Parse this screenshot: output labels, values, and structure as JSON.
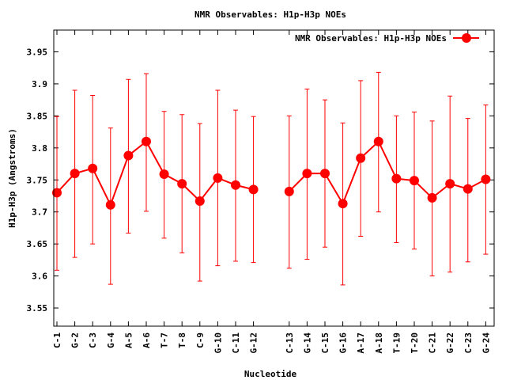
{
  "chart_data": {
    "type": "line",
    "title": "NMR Observables: H1p-H3p NOEs",
    "xlabel": "Nucleotide",
    "ylabel": "H1p-H3p (Angstroms)",
    "legend": {
      "label": "NMR Observables: H1p-H3p NOEs",
      "placement": "top-right"
    },
    "grid": false,
    "ylim": [
      3.5216,
      3.984
    ],
    "xlim": [
      0.823,
      25.47
    ],
    "yticks": [
      3.55,
      3.6,
      3.65,
      3.7,
      3.75,
      3.8,
      3.85,
      3.9,
      3.95
    ],
    "ytick_labels": [
      "3.55",
      "3.6",
      "3.65",
      "3.7",
      "3.75",
      "3.8",
      "3.85",
      "3.9",
      "3.95"
    ],
    "color": "#ff0000",
    "categories": [
      "C-1",
      "G-2",
      "C-3",
      "G-4",
      "A-5",
      "A-6",
      "T-7",
      "T-8",
      "C-9",
      "G-10",
      "C-11",
      "G-12",
      "C-13",
      "G-14",
      "C-15",
      "G-16",
      "A-17",
      "A-18",
      "T-19",
      "T-20",
      "C-21",
      "G-22",
      "C-23",
      "G-24"
    ],
    "x": [
      1,
      2,
      3,
      4,
      5,
      6,
      7,
      8,
      9,
      10,
      11,
      12,
      14,
      15,
      16,
      17,
      18,
      19,
      20,
      21,
      22,
      23,
      24,
      25
    ],
    "series": [
      {
        "name": "NMR Observables: H1p-H3p NOEs",
        "values": [
          3.73,
          3.76,
          3.768,
          3.711,
          3.788,
          3.81,
          3.759,
          3.744,
          3.717,
          3.753,
          3.742,
          3.735,
          3.732,
          3.76,
          3.76,
          3.713,
          3.784,
          3.81,
          3.752,
          3.749,
          3.722,
          3.744,
          3.736,
          3.751
        ],
        "err_high": [
          3.849,
          3.89,
          3.882,
          3.831,
          3.907,
          3.916,
          3.857,
          3.852,
          3.838,
          3.89,
          3.859,
          3.849,
          3.85,
          3.892,
          3.875,
          3.839,
          3.905,
          3.918,
          3.85,
          3.856,
          3.842,
          3.881,
          3.846,
          3.867
        ],
        "err_low": [
          3.609,
          3.629,
          3.65,
          3.587,
          3.667,
          3.701,
          3.659,
          3.636,
          3.592,
          3.616,
          3.623,
          3.621,
          3.612,
          3.626,
          3.645,
          3.586,
          3.662,
          3.7,
          3.652,
          3.642,
          3.6,
          3.606,
          3.622,
          3.634
        ],
        "segments": [
          [
            0,
            11
          ],
          [
            12,
            23
          ]
        ]
      }
    ]
  }
}
